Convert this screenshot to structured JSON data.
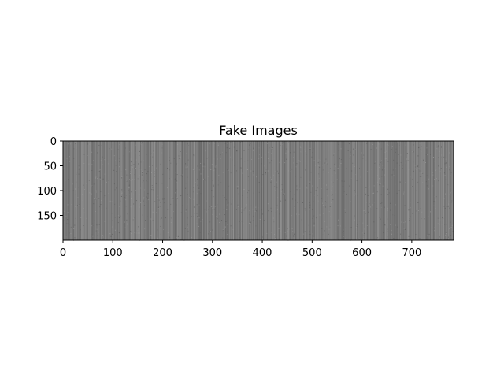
{
  "chart_data": {
    "type": "heatmap",
    "title": "Fake Images",
    "xlabel": "",
    "ylabel": "",
    "colormap": "gray",
    "image_shape": [
      200,
      784
    ],
    "xlim": [
      0,
      784
    ],
    "ylim": [
      200,
      0
    ],
    "xticks": [
      0,
      100,
      200,
      300,
      400,
      500,
      600,
      700
    ],
    "yticks": [
      0,
      50,
      100,
      150
    ],
    "pixel_value_range": [
      0.36,
      0.62
    ],
    "pattern": "vertical stripes of gray noise; each column roughly constant intensity",
    "grid": false,
    "colors": {
      "background": "#ffffff",
      "axes_edge": "#000000",
      "base_gray": "#7a7a7a"
    }
  }
}
